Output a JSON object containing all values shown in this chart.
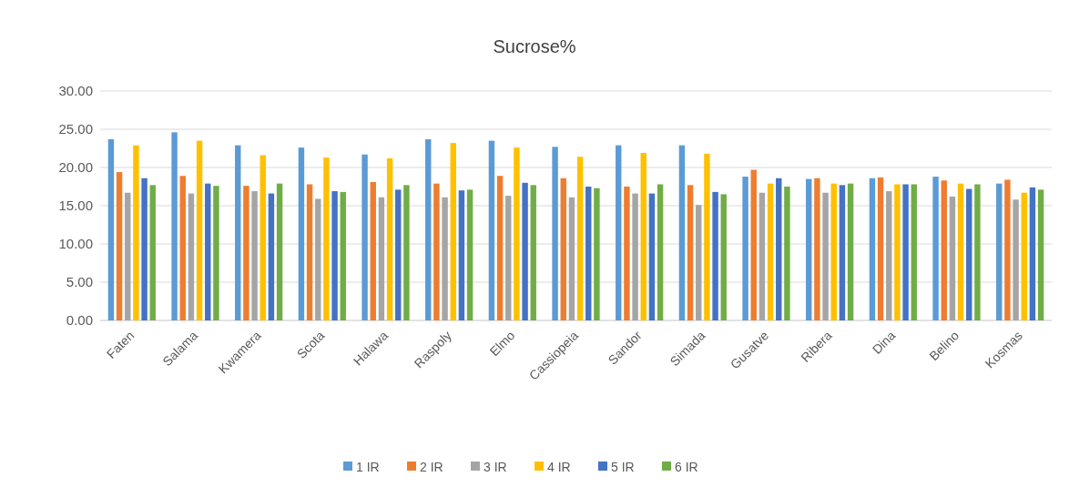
{
  "chart_data": {
    "type": "bar",
    "title": "Sucrose%",
    "categories": [
      "Faten",
      "Salama",
      "Kwamera",
      "Scota",
      "Halawa",
      "Raspoly",
      "Elmo",
      "Cassiopeia",
      "Sandor",
      "Simada",
      "Gusatve",
      "Ribera",
      "Dina",
      "Belino",
      "Kosmas"
    ],
    "series": [
      {
        "name": "1 IR",
        "color": "#5b9bd5",
        "values": [
          23.7,
          24.6,
          22.9,
          22.6,
          21.7,
          23.7,
          23.5,
          22.7,
          22.9,
          22.9,
          18.8,
          18.5,
          18.6,
          18.8,
          17.9
        ]
      },
      {
        "name": "2 IR",
        "color": "#ed7d31",
        "values": [
          19.4,
          18.9,
          17.6,
          17.8,
          18.1,
          17.9,
          18.9,
          18.6,
          17.5,
          17.7,
          19.7,
          18.6,
          18.7,
          18.3,
          18.4
        ]
      },
      {
        "name": "3 IR",
        "color": "#a5a5a5",
        "values": [
          16.7,
          16.6,
          16.9,
          15.9,
          16.1,
          16.1,
          16.3,
          16.1,
          16.6,
          15.1,
          16.7,
          16.7,
          16.9,
          16.2,
          15.8
        ]
      },
      {
        "name": "4 IR",
        "color": "#ffc000",
        "values": [
          22.9,
          23.5,
          21.6,
          21.3,
          21.2,
          23.2,
          22.6,
          21.4,
          21.9,
          21.8,
          17.9,
          17.9,
          17.8,
          17.9,
          16.7
        ]
      },
      {
        "name": "5 IR",
        "color": "#4472c4",
        "values": [
          18.6,
          17.9,
          16.6,
          16.9,
          17.1,
          17.0,
          18.0,
          17.5,
          16.6,
          16.8,
          18.6,
          17.7,
          17.8,
          17.2,
          17.4
        ]
      },
      {
        "name": "6 IR",
        "color": "#70ad47",
        "values": [
          17.7,
          17.6,
          17.9,
          16.8,
          17.7,
          17.1,
          17.7,
          17.3,
          17.8,
          16.5,
          17.5,
          17.9,
          17.8,
          17.8,
          17.1
        ]
      }
    ],
    "ylim": [
      0,
      30
    ],
    "yticks": [
      {
        "value": 0,
        "label": "0.00"
      },
      {
        "value": 5,
        "label": "5.00"
      },
      {
        "value": 10,
        "label": "10.00"
      },
      {
        "value": 15,
        "label": "15.00"
      },
      {
        "value": 20,
        "label": "20.00"
      },
      {
        "value": 25,
        "label": "25.00"
      },
      {
        "value": 30,
        "label": "30.00"
      }
    ],
    "grid": "y",
    "legend": "bottom"
  }
}
